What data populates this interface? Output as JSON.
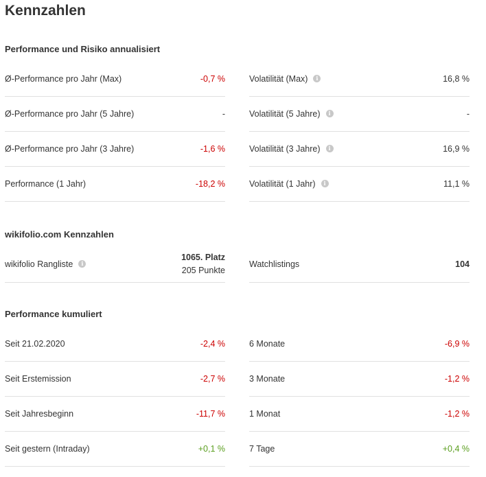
{
  "title": "Kennzahlen",
  "sections": [
    {
      "heading": "Performance und Risiko annualisiert",
      "left": [
        {
          "label": "Ø-Performance pro Jahr (Max)",
          "value": "-0,7 %"
        },
        {
          "label": "Ø-Performance pro Jahr (5 Jahre)",
          "value": "-"
        },
        {
          "label": "Ø-Performance pro Jahr (3 Jahre)",
          "value": "-1,6 %"
        },
        {
          "label": "Performance (1 Jahr)",
          "value": "-18,2 %"
        }
      ],
      "right": [
        {
          "label": "Volatilität (Max)",
          "value": "16,8 %"
        },
        {
          "label": "Volatilität (5 Jahre)",
          "value": "-"
        },
        {
          "label": "Volatilität (3 Jahre)",
          "value": "16,9 %"
        },
        {
          "label": "Volatilität (1 Jahr)",
          "value": "11,1 %"
        }
      ]
    },
    {
      "heading": "wikifolio.com Kennzahlen",
      "left": [
        {
          "label": "wikifolio Rangliste",
          "value_line1": "1065. Platz",
          "value_line2": "205 Punkte"
        }
      ],
      "right": [
        {
          "label": "Watchlistings",
          "value": "104"
        }
      ]
    },
    {
      "heading": "Performance kumuliert",
      "left": [
        {
          "label": "Seit 21.02.2020",
          "value": "-2,4 %"
        },
        {
          "label": "Seit Erstemission",
          "value": "-2,7 %"
        },
        {
          "label": "Seit Jahresbeginn",
          "value": "-11,7 %"
        },
        {
          "label": "Seit gestern (Intraday)",
          "value": "+0,1 %"
        }
      ],
      "right": [
        {
          "label": "6 Monate",
          "value": "-6,9 %"
        },
        {
          "label": "3 Monate",
          "value": "-1,2 %"
        },
        {
          "label": "1 Monat",
          "value": "-1,2 %"
        },
        {
          "label": "7 Tage",
          "value": "+0,4 %"
        }
      ]
    }
  ],
  "info_icon_glyph": "i",
  "colors": {
    "negative": "#cc0000",
    "positive": "#5a9e1e",
    "text": "#333333",
    "divider": "#e0e0e0"
  }
}
